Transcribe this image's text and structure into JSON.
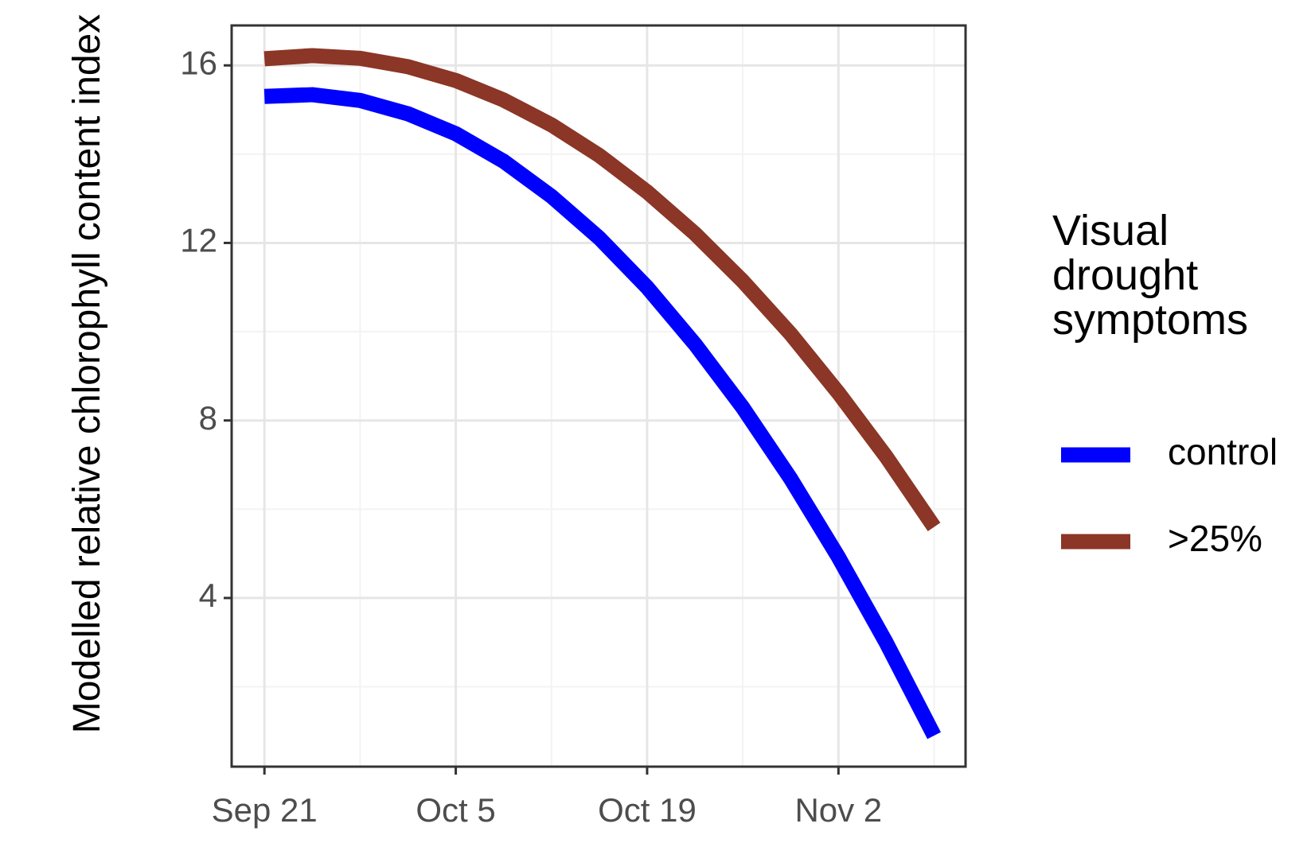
{
  "chart_data": {
    "type": "line",
    "y_label": "Modelled relative chlorophyll content index",
    "legend_title": "Visual drought symptoms",
    "x": [
      0,
      3.5,
      7,
      10.5,
      14,
      17.5,
      21,
      24.5,
      28,
      31.5,
      35,
      38.5,
      42,
      45.5,
      49
    ],
    "series": [
      {
        "name": "control",
        "color": "#0000ff",
        "values": [
          15.3,
          15.34,
          15.21,
          14.91,
          14.46,
          13.84,
          13.05,
          12.11,
          11.0,
          9.72,
          8.29,
          6.69,
          4.92,
          2.99,
          0.9
        ]
      },
      {
        "name": ">25%",
        "color": "#8b3626",
        "values": [
          16.15,
          16.22,
          16.16,
          15.97,
          15.66,
          15.22,
          14.66,
          13.97,
          13.15,
          12.21,
          11.14,
          9.95,
          8.62,
          7.18,
          5.6
        ]
      }
    ],
    "xlim": [
      -2.4,
      51.3
    ],
    "ylim": [
      0.2,
      16.9
    ],
    "xticks": [
      {
        "value": 0,
        "label": "Sep 21"
      },
      {
        "value": 14,
        "label": "Oct 5"
      },
      {
        "value": 28,
        "label": "Oct 19"
      },
      {
        "value": 42,
        "label": "Nov 2"
      }
    ],
    "yticks": [
      4,
      8,
      12,
      16
    ],
    "grid": true,
    "legend": "right"
  }
}
